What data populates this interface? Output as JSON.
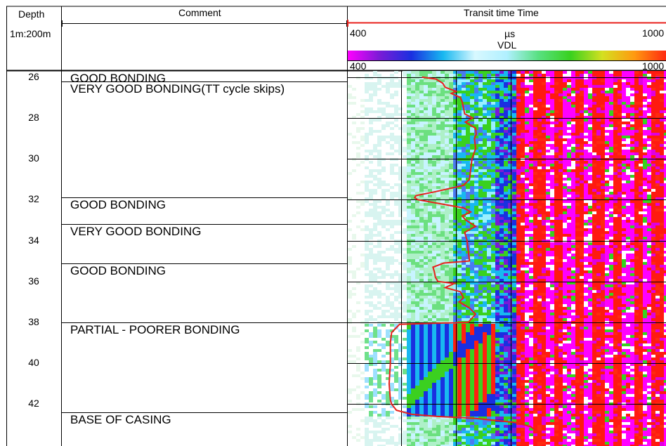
{
  "header": {
    "depth_title": "Depth",
    "depth_scale": "1m:200m",
    "comment_title": "Comment",
    "track_title": "Transit time Time",
    "tt_left": "400",
    "tt_right": "1000",
    "tt_unit": "µs",
    "vdl_title": "VDL",
    "vdl_left": "400",
    "vdl_right": "1000"
  },
  "colors": {
    "curve": "#e8201c",
    "grid": "#000000",
    "vdl_scale": [
      "#ff00ff",
      "#7a1bd6",
      "#1a2fe0",
      "#18b8f0",
      "#d8f8ff",
      "#b0f0ff",
      "#58e080",
      "#39d11f",
      "#d4e020",
      "#ff9a10",
      "#ff2a10"
    ]
  },
  "chart_data": {
    "type": "well-log",
    "depth_range": [
      25.7,
      43.3
    ],
    "depth_labels": [
      26,
      28,
      30,
      32,
      34,
      36,
      38,
      40,
      42
    ],
    "curve_range": [
      400,
      1000
    ],
    "comments": [
      {
        "top": 25.7,
        "base": 26.2,
        "text": "GOOD BONDING"
      },
      {
        "top": 26.2,
        "base": 31.9,
        "text": "VERY GOOD BONDING(TT cycle skips)"
      },
      {
        "top": 31.9,
        "base": 33.2,
        "text": "GOOD BONDING"
      },
      {
        "top": 33.2,
        "base": 35.1,
        "text": "VERY GOOD BONDING"
      },
      {
        "top": 35.1,
        "base": 38.0,
        "text": "GOOD BONDING"
      },
      {
        "top": 38.0,
        "base": 42.4,
        "text": "PARTIAL - POORER BONDING"
      },
      {
        "top": 42.4,
        "base": 43.3,
        "text": "BASE OF CASING"
      }
    ],
    "transit_time_curve": [
      [
        26.0,
        522
      ],
      [
        26.1,
        545
      ],
      [
        26.3,
        556
      ],
      [
        26.5,
        560
      ],
      [
        26.7,
        578
      ],
      [
        26.8,
        570
      ],
      [
        27.0,
        585
      ],
      [
        27.2,
        588
      ],
      [
        27.5,
        590
      ],
      [
        27.8,
        592
      ],
      [
        28.0,
        605
      ],
      [
        28.2,
        593
      ],
      [
        28.5,
        610
      ],
      [
        28.8,
        611
      ],
      [
        29.0,
        608
      ],
      [
        29.5,
        610
      ],
      [
        30.0,
        604
      ],
      [
        30.5,
        602
      ],
      [
        31.0,
        600
      ],
      [
        31.3,
        590
      ],
      [
        31.6,
        545
      ],
      [
        31.8,
        512
      ],
      [
        31.9,
        510
      ],
      [
        32.0,
        515
      ],
      [
        32.4,
        590
      ],
      [
        32.6,
        602
      ],
      [
        32.8,
        588
      ],
      [
        33.0,
        594
      ],
      [
        33.3,
        610
      ],
      [
        33.6,
        592
      ],
      [
        34.0,
        596
      ],
      [
        34.5,
        598
      ],
      [
        35.0,
        600
      ],
      [
        35.1,
        558
      ],
      [
        35.3,
        540
      ],
      [
        35.5,
        542
      ],
      [
        35.8,
        544
      ],
      [
        36.0,
        548
      ],
      [
        36.1,
        575
      ],
      [
        36.3,
        560
      ],
      [
        36.5,
        585
      ],
      [
        36.8,
        590
      ],
      [
        37.0,
        583
      ],
      [
        37.3,
        600
      ],
      [
        37.6,
        610
      ],
      [
        38.0,
        598
      ],
      [
        38.1,
        485
      ],
      [
        38.5,
        472
      ],
      [
        39.0,
        470
      ],
      [
        40.0,
        470
      ],
      [
        41.0,
        468
      ],
      [
        41.8,
        470
      ],
      [
        42.0,
        472
      ],
      [
        42.3,
        480
      ],
      [
        42.5,
        505
      ],
      [
        42.6,
        545
      ],
      [
        42.7,
        610
      ],
      [
        42.9,
        675
      ],
      [
        43.1,
        700
      ],
      [
        43.3,
        710
      ]
    ]
  }
}
